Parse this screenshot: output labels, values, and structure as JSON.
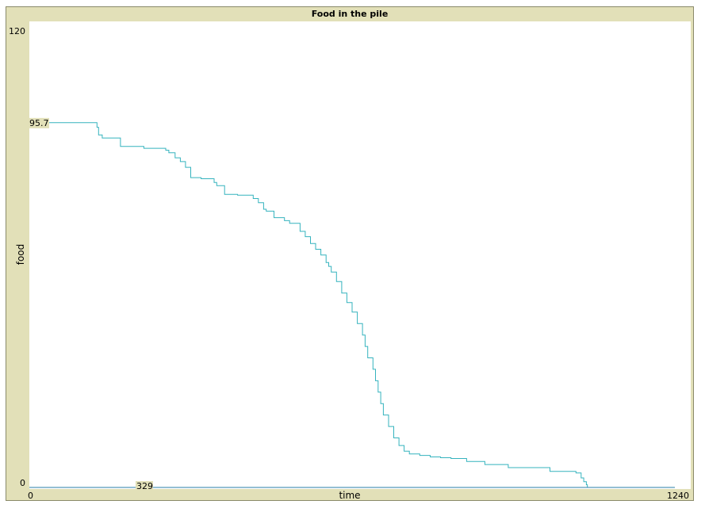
{
  "chart_data": {
    "type": "line",
    "title": "Food in the pile",
    "xlabel": "time",
    "ylabel": "food",
    "xlim": [
      0,
      1240
    ],
    "ylim": [
      0,
      120
    ],
    "x_tick_labels": [
      "0",
      "1240"
    ],
    "y_tick_labels": [
      "0",
      "120"
    ],
    "grid": false,
    "series": [
      {
        "color": "#35b3be",
        "x": [
          0,
          80,
          130,
          133,
          140,
          175,
          220,
          262,
          268,
          280,
          290,
          300,
          310,
          330,
          355,
          360,
          375,
          400,
          430,
          440,
          450,
          455,
          470,
          490,
          500,
          520,
          530,
          540,
          550,
          560,
          570,
          575,
          580,
          590,
          600,
          610,
          620,
          630,
          640,
          645,
          650,
          660,
          665,
          670,
          675,
          680,
          690,
          700,
          710,
          720,
          730,
          750,
          770,
          790,
          810,
          840,
          875,
          920,
          1000,
          1050,
          1060,
          1065,
          1070,
          1072,
          1240
        ],
        "y": [
          95.7,
          95.7,
          94.5,
          92.5,
          91.7,
          89.5,
          89.0,
          88.5,
          87.8,
          86.5,
          85.5,
          84.0,
          81.3,
          81.0,
          80.0,
          79.2,
          76.9,
          76.7,
          75.8,
          74.7,
          73.0,
          72.5,
          70.8,
          70.0,
          69.3,
          67.2,
          65.8,
          64.0,
          62.5,
          61.0,
          59.0,
          58.0,
          56.5,
          54.0,
          51.0,
          48.5,
          46.0,
          43.0,
          40.0,
          37.0,
          34.0,
          31.0,
          28.0,
          25.0,
          22.0,
          19.0,
          16.0,
          13.0,
          11.0,
          9.5,
          8.8,
          8.4,
          8.0,
          7.8,
          7.6,
          6.8,
          6.0,
          5.2,
          4.2,
          3.8,
          2.5,
          1.5,
          0.7,
          0.0,
          0.0
        ]
      },
      {
        "color": "#2a7fa8",
        "x": [
          0,
          1240
        ],
        "y": [
          0,
          0
        ]
      }
    ],
    "annotations": [
      {
        "text": "95.7",
        "x": 0,
        "y": 95.7
      },
      {
        "text": "329",
        "x": 329,
        "y": 0
      }
    ]
  }
}
